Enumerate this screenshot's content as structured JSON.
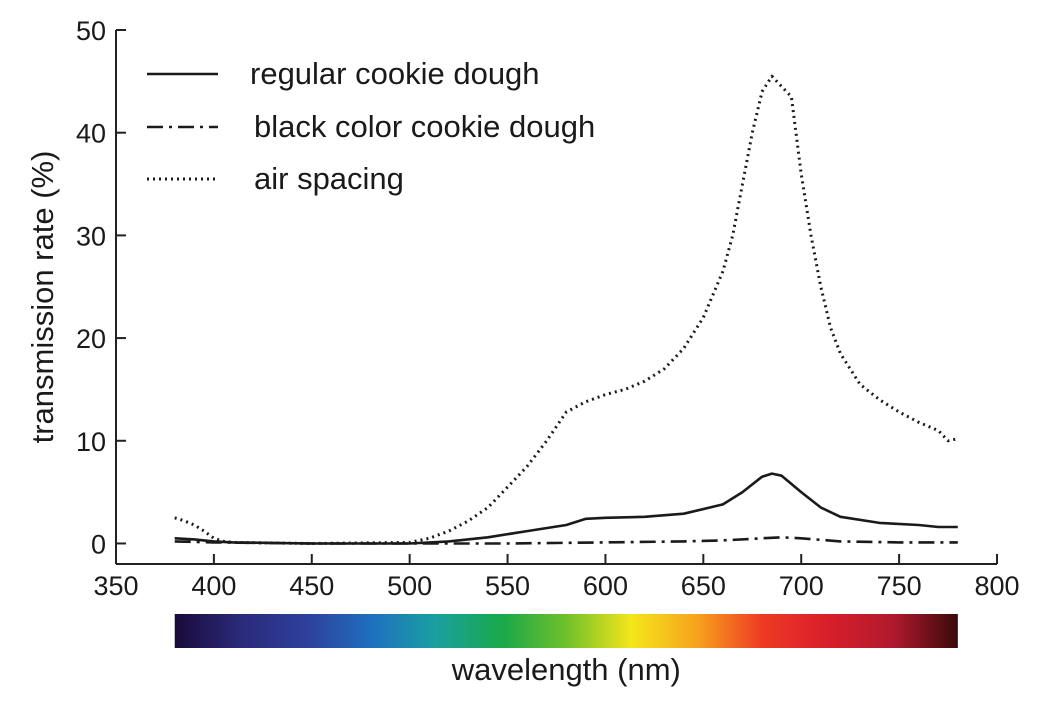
{
  "chart_data": {
    "type": "line",
    "xlabel": "wavelength (nm)",
    "ylabel": "transmission rate (%)",
    "xlim": [
      350,
      800
    ],
    "ylim": [
      -2,
      50
    ],
    "xticks": [
      "350",
      "400",
      "450",
      "500",
      "550",
      "600",
      "650",
      "700",
      "750",
      "800"
    ],
    "yticks": [
      "0",
      "10",
      "20",
      "30",
      "40",
      "50"
    ],
    "legend_position": "top-left",
    "colorbar": {
      "range": [
        380,
        780
      ],
      "colors": [
        "#1a0a3a",
        "#2a2a7a",
        "#2e3f9a",
        "#1f6fbf",
        "#1aa0a0",
        "#19a84a",
        "#6fc02a",
        "#f4e61a",
        "#f7a21e",
        "#ee3a24",
        "#d81f2a",
        "#b01a2e",
        "#3a0a0a"
      ]
    },
    "series": [
      {
        "name": "regular cookie dough",
        "style": "solid",
        "x": [
          380,
          390,
          400,
          410,
          450,
          500,
          520,
          540,
          560,
          580,
          590,
          600,
          620,
          640,
          660,
          670,
          680,
          685,
          690,
          700,
          710,
          720,
          740,
          760,
          770,
          780
        ],
        "y": [
          0.5,
          0.4,
          0.2,
          0.1,
          0.0,
          0.0,
          0.2,
          0.6,
          1.2,
          1.8,
          2.4,
          2.5,
          2.6,
          2.9,
          3.8,
          5.0,
          6.5,
          6.8,
          6.6,
          5.0,
          3.5,
          2.6,
          2.0,
          1.8,
          1.6,
          1.6
        ]
      },
      {
        "name": "black color cookie dough",
        "style": "dashdot",
        "x": [
          380,
          400,
          450,
          500,
          550,
          600,
          640,
          660,
          680,
          690,
          700,
          720,
          750,
          780
        ],
        "y": [
          0.2,
          0.1,
          0.0,
          0.0,
          0.0,
          0.1,
          0.2,
          0.3,
          0.5,
          0.6,
          0.5,
          0.2,
          0.1,
          0.1
        ],
        "_a": 0
      },
      {
        "name": "air spacing",
        "style": "dotted",
        "x": [
          380,
          385,
          390,
          395,
          400,
          405,
          410,
          450,
          500,
          510,
          520,
          530,
          540,
          550,
          560,
          570,
          580,
          590,
          600,
          610,
          620,
          630,
          640,
          650,
          660,
          665,
          670,
          675,
          680,
          685,
          690,
          695,
          700,
          705,
          710,
          715,
          720,
          725,
          730,
          740,
          750,
          760,
          770,
          775,
          780
        ],
        "y": [
          2.5,
          2.2,
          1.8,
          1.2,
          0.5,
          0.2,
          0.1,
          0.0,
          0.1,
          0.5,
          1.2,
          2.2,
          3.5,
          5.5,
          7.5,
          10.0,
          12.8,
          13.8,
          14.5,
          15.0,
          15.8,
          17.0,
          19.0,
          22.0,
          26.5,
          30.0,
          35.0,
          40.0,
          44.0,
          45.5,
          44.5,
          43.5,
          36.0,
          30.0,
          25.0,
          21.0,
          18.5,
          17.0,
          15.5,
          14.0,
          12.8,
          11.8,
          11.0,
          10.0,
          10.2
        ]
      }
    ]
  }
}
